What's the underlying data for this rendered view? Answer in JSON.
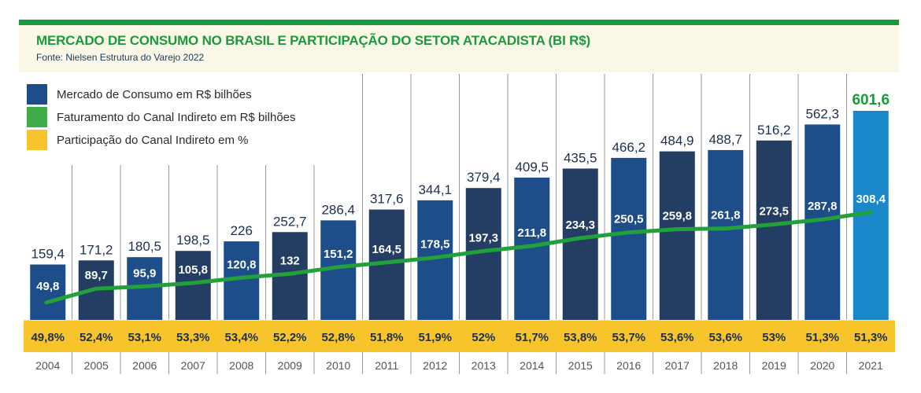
{
  "header": {
    "title": "MERCADO DE CONSUMO NO BRASIL E PARTICIPAÇÃO DO SETOR ATACADISTA (BI R$)",
    "source": "Fonte: Nielsen Estrutura do Varejo 2022"
  },
  "legend": [
    {
      "label": "Mercado de Consumo em R$ bilhões",
      "color": "#1d4e8a"
    },
    {
      "label": "Faturamento do Canal Indireto em R$ bilhões",
      "color": "#3fae49"
    },
    {
      "label": "Participação do Canal Indireto em %",
      "color": "#f7c42c"
    }
  ],
  "chart_data": {
    "type": "bar",
    "categories": [
      "2004",
      "2005",
      "2006",
      "2007",
      "2008",
      "2009",
      "2010",
      "2011",
      "2012",
      "2013",
      "2014",
      "2015",
      "2016",
      "2017",
      "2018",
      "2019",
      "2020",
      "2021"
    ],
    "series": [
      {
        "name": "Mercado de Consumo em R$ bilhões",
        "values": [
          159.4,
          171.2,
          180.5,
          198.5,
          226,
          252.7,
          286.4,
          317.6,
          344.1,
          379.4,
          409.5,
          435.5,
          466.2,
          484.9,
          488.7,
          516.2,
          562.3,
          601.6
        ],
        "labels": [
          "159,4",
          "171,2",
          "180,5",
          "198,5",
          "226",
          "252,7",
          "286,4",
          "317,6",
          "344,1",
          "379,4",
          "409,5",
          "435,5",
          "466,2",
          "484,9",
          "488,7",
          "516,2",
          "562,3",
          "601,6"
        ]
      },
      {
        "name": "Faturamento do Canal Indireto em R$ bilhões",
        "values": [
          49.8,
          89.7,
          95.9,
          105.8,
          120.8,
          132,
          151.2,
          164.5,
          178.5,
          197.3,
          211.8,
          234.3,
          250.5,
          259.8,
          261.8,
          273.5,
          287.8,
          308.4
        ],
        "labels": [
          "49,8",
          "89,7",
          "95,9",
          "105,8",
          "120,8",
          "132",
          "151,2",
          "164,5",
          "178,5",
          "197,3",
          "211,8",
          "234,3",
          "250,5",
          "259,8",
          "261,8",
          "273,5",
          "287,8",
          "308,4"
        ]
      },
      {
        "name": "Participação do Canal Indireto em %",
        "values": [
          49.8,
          52.4,
          53.1,
          53.3,
          53.4,
          52.2,
          52.8,
          51.8,
          51.9,
          52,
          51.7,
          53.8,
          53.7,
          53.6,
          53.6,
          53,
          51.3,
          51.3
        ],
        "labels": [
          "49,8%",
          "52,4%",
          "53,1%",
          "53,3%",
          "53,4%",
          "52,2%",
          "52,8%",
          "51,8%",
          "51,9%",
          "52%",
          "51,7%",
          "53,8%",
          "53,7%",
          "53,6%",
          "53,6%",
          "53%",
          "51,3%",
          "51,3%"
        ]
      }
    ],
    "highlight_last_year": true,
    "colors": {
      "bar_dark": "#233d63",
      "bar_mid": "#1d4e8a",
      "bar_highlight": "#1a87c9",
      "line": "#22a03a",
      "pct_band": "#f7c42c",
      "highlight_label": "#1a9a3c"
    }
  }
}
